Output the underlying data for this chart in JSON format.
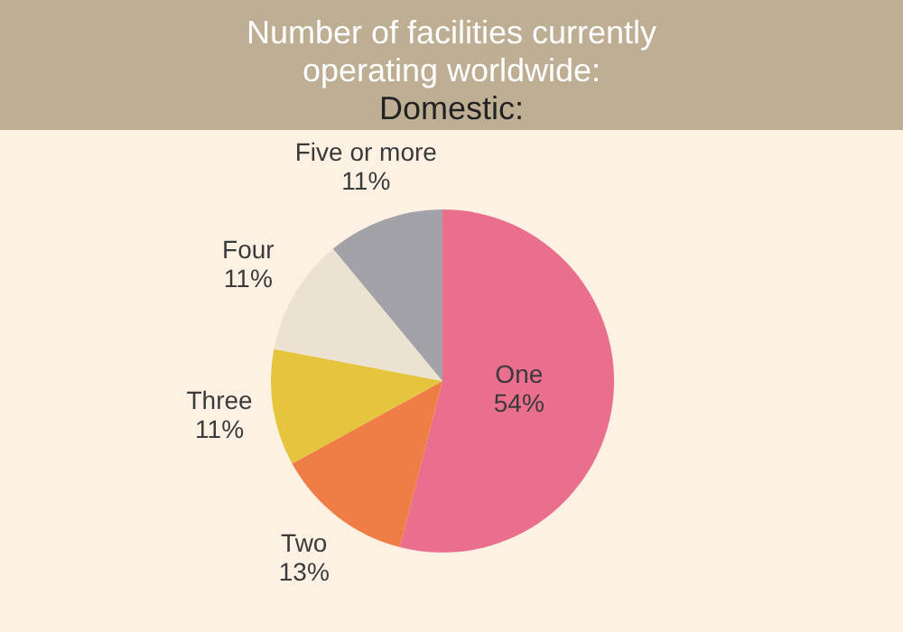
{
  "chart_data": {
    "type": "pie",
    "title": "Number of facilities currently operating worldwide:",
    "subtitle": "Domestic:",
    "categories": [
      "One",
      "Two",
      "Three",
      "Four",
      "Five or more"
    ],
    "values": [
      54,
      13,
      11,
      11,
      11
    ],
    "colors": [
      "#e96f8c",
      "#ee7e45",
      "#e5c43e",
      "#ebe2d2",
      "#a2a2a8"
    ],
    "value_labels": [
      "54%",
      "13%",
      "11%",
      "11%",
      "11%"
    ],
    "legend": false
  }
}
